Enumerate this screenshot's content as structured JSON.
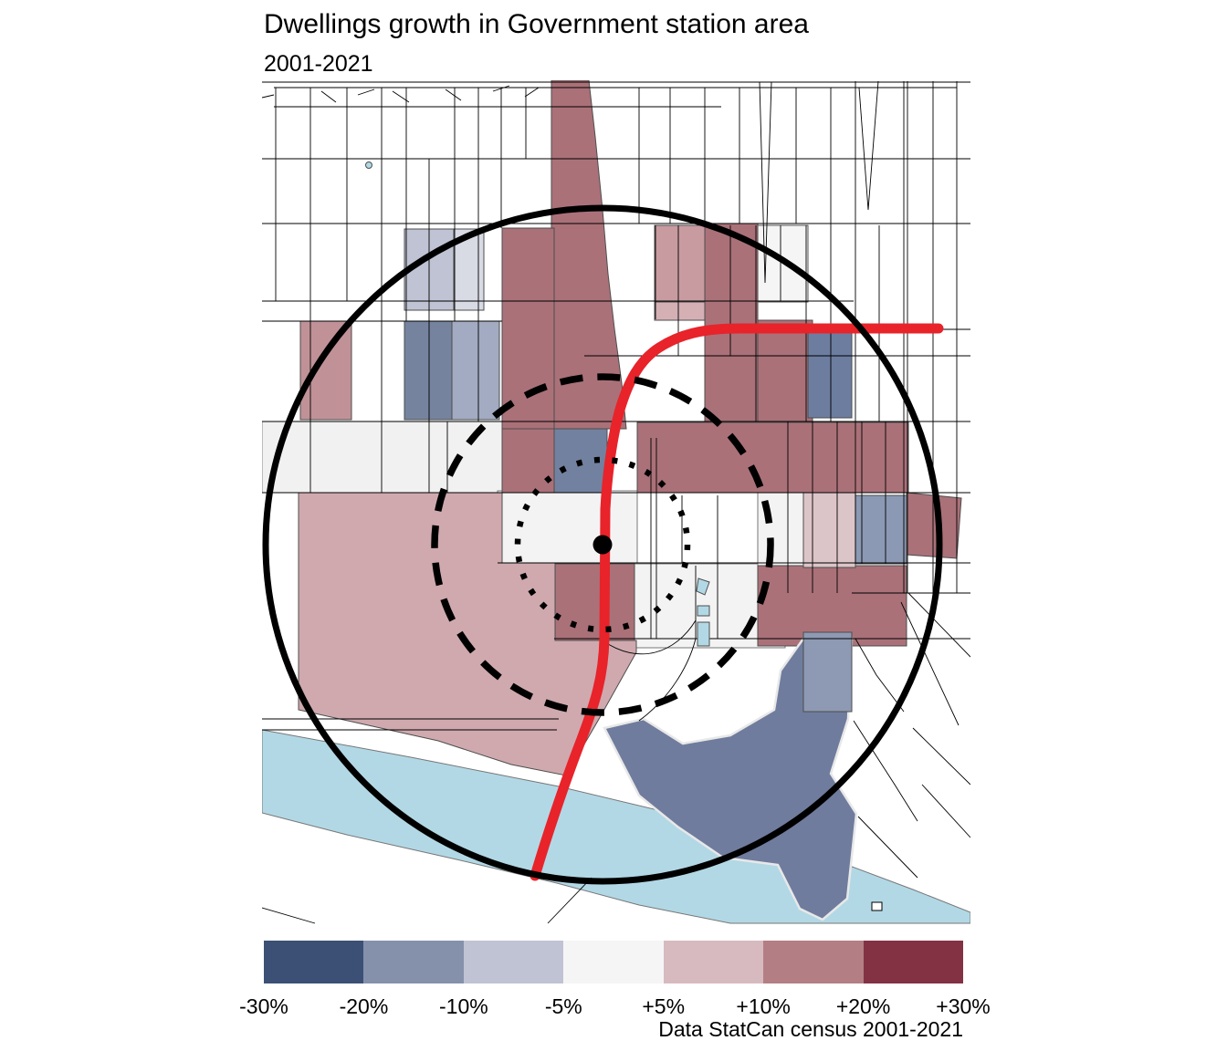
{
  "title": "Dwellings growth in Government station area",
  "subtitle": "2001-2021",
  "caption": "Data StatCan census 2001-2021",
  "legend": {
    "labels": [
      "-30%",
      "-20%",
      "-10%",
      "-5%",
      "+5%",
      "+10%",
      "+20%",
      "+30%"
    ],
    "colors": [
      "#3b5074",
      "#8591ab",
      "#bfc3d3",
      "#f6f5f6",
      "#d7babf",
      "#b37f84",
      "#833243"
    ]
  },
  "map": {
    "colors": {
      "water": "#b2d8e5",
      "transit_line": "#e8232a",
      "ring": "#000000",
      "growth_strong_positive": "#aa7179",
      "growth_positive": "#cfa9ae",
      "growth_strong_negative": "#6f7c9d",
      "growth_negative": "#8e9ab3"
    },
    "rings": [
      "dotted",
      "dashed",
      "solid"
    ],
    "marker": "station-dot"
  }
}
